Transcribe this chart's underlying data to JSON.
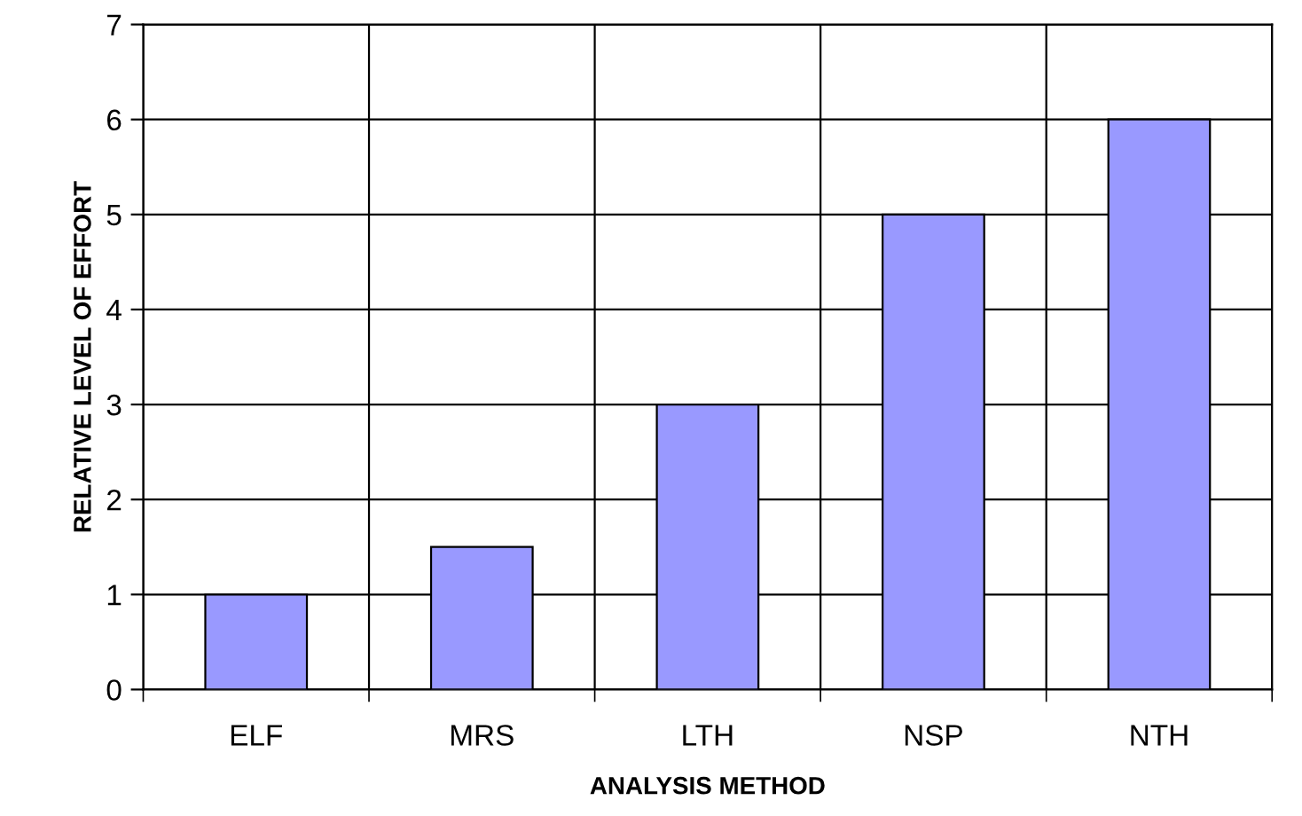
{
  "chart_data": {
    "type": "bar",
    "xlabel": "ANALYSIS METHOD",
    "ylabel": "RELATIVE LEVEL OF EFFORT",
    "categories": [
      "ELF",
      "MRS",
      "LTH",
      "NSP",
      "NTH"
    ],
    "values": [
      1,
      1.5,
      3,
      5,
      6
    ],
    "color": "#9999ff",
    "ylim": [
      0,
      7
    ],
    "yticks": [
      0,
      1,
      2,
      3,
      4,
      5,
      6,
      7
    ],
    "grid": true
  }
}
